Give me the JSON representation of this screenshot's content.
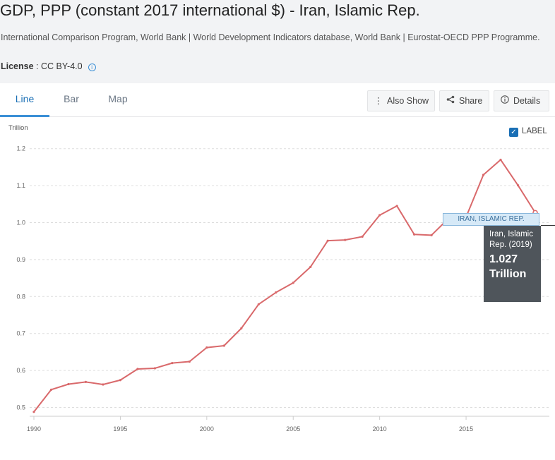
{
  "header": {
    "title": "GDP, PPP (constant 2017 international $) - Iran, Islamic Rep.",
    "source": "International Comparison Program, World Bank | World Development Indicators database, World Bank | Eurostat-OECD PPP Programme.",
    "license_label": "License",
    "license_value": " : CC BY-4.0",
    "info_icon": "i"
  },
  "tabs": [
    {
      "label": "Line",
      "active": true
    },
    {
      "label": "Bar",
      "active": false
    },
    {
      "label": "Map",
      "active": false
    }
  ],
  "toolbar": {
    "also_show": "Also Show",
    "share": "Share",
    "details": "Details",
    "icons": {
      "also_show": "vertical-dots-icon",
      "share": "share-icon",
      "details": "info-icon"
    }
  },
  "label_toggle": {
    "label": "LABEL",
    "checked": true
  },
  "colors": {
    "line": "#d9696b",
    "accent": "#1a6fb5",
    "grid": "#dddddd"
  },
  "tooltip": {
    "series_tag": "IRAN, ISLAMIC REP.",
    "name": "Iran, Islamic Rep. (2019)",
    "value": "1.027",
    "unit": "Trillion"
  },
  "chart_data": {
    "type": "line",
    "unit_label": "Trillion",
    "ylim": [
      0.45,
      1.22
    ],
    "yticks": [
      0.5,
      0.6,
      0.7,
      0.8,
      0.9,
      1.0,
      1.1,
      1.2
    ],
    "ytick_labels": [
      "0.5",
      "0.6",
      "0.7",
      "0.8",
      "0.9",
      "1.0",
      "1.1",
      "1.2"
    ],
    "xlim": [
      1990,
      2019
    ],
    "xticks": [
      1990,
      1995,
      2000,
      2005,
      2010,
      2015
    ],
    "xtick_labels": [
      "1990",
      "1995",
      "2000",
      "2005",
      "2010",
      "2015"
    ],
    "grid": true,
    "series": [
      {
        "name": "IRAN, ISLAMIC REP.",
        "x": [
          1990,
          1991,
          1992,
          1993,
          1994,
          1995,
          1996,
          1997,
          1998,
          1999,
          2000,
          2001,
          2002,
          2003,
          2004,
          2005,
          2006,
          2007,
          2008,
          2009,
          2010,
          2011,
          2012,
          2013,
          2014,
          2015,
          2016,
          2017,
          2018,
          2019
        ],
        "values": [
          0.488,
          0.548,
          0.563,
          0.569,
          0.562,
          0.574,
          0.604,
          0.606,
          0.62,
          0.624,
          0.662,
          0.667,
          0.714,
          0.779,
          0.811,
          0.837,
          0.88,
          0.951,
          0.953,
          0.962,
          1.02,
          1.045,
          0.968,
          0.966,
          1.012,
          1.015,
          1.129,
          1.17,
          1.101,
          1.027
        ]
      }
    ]
  }
}
